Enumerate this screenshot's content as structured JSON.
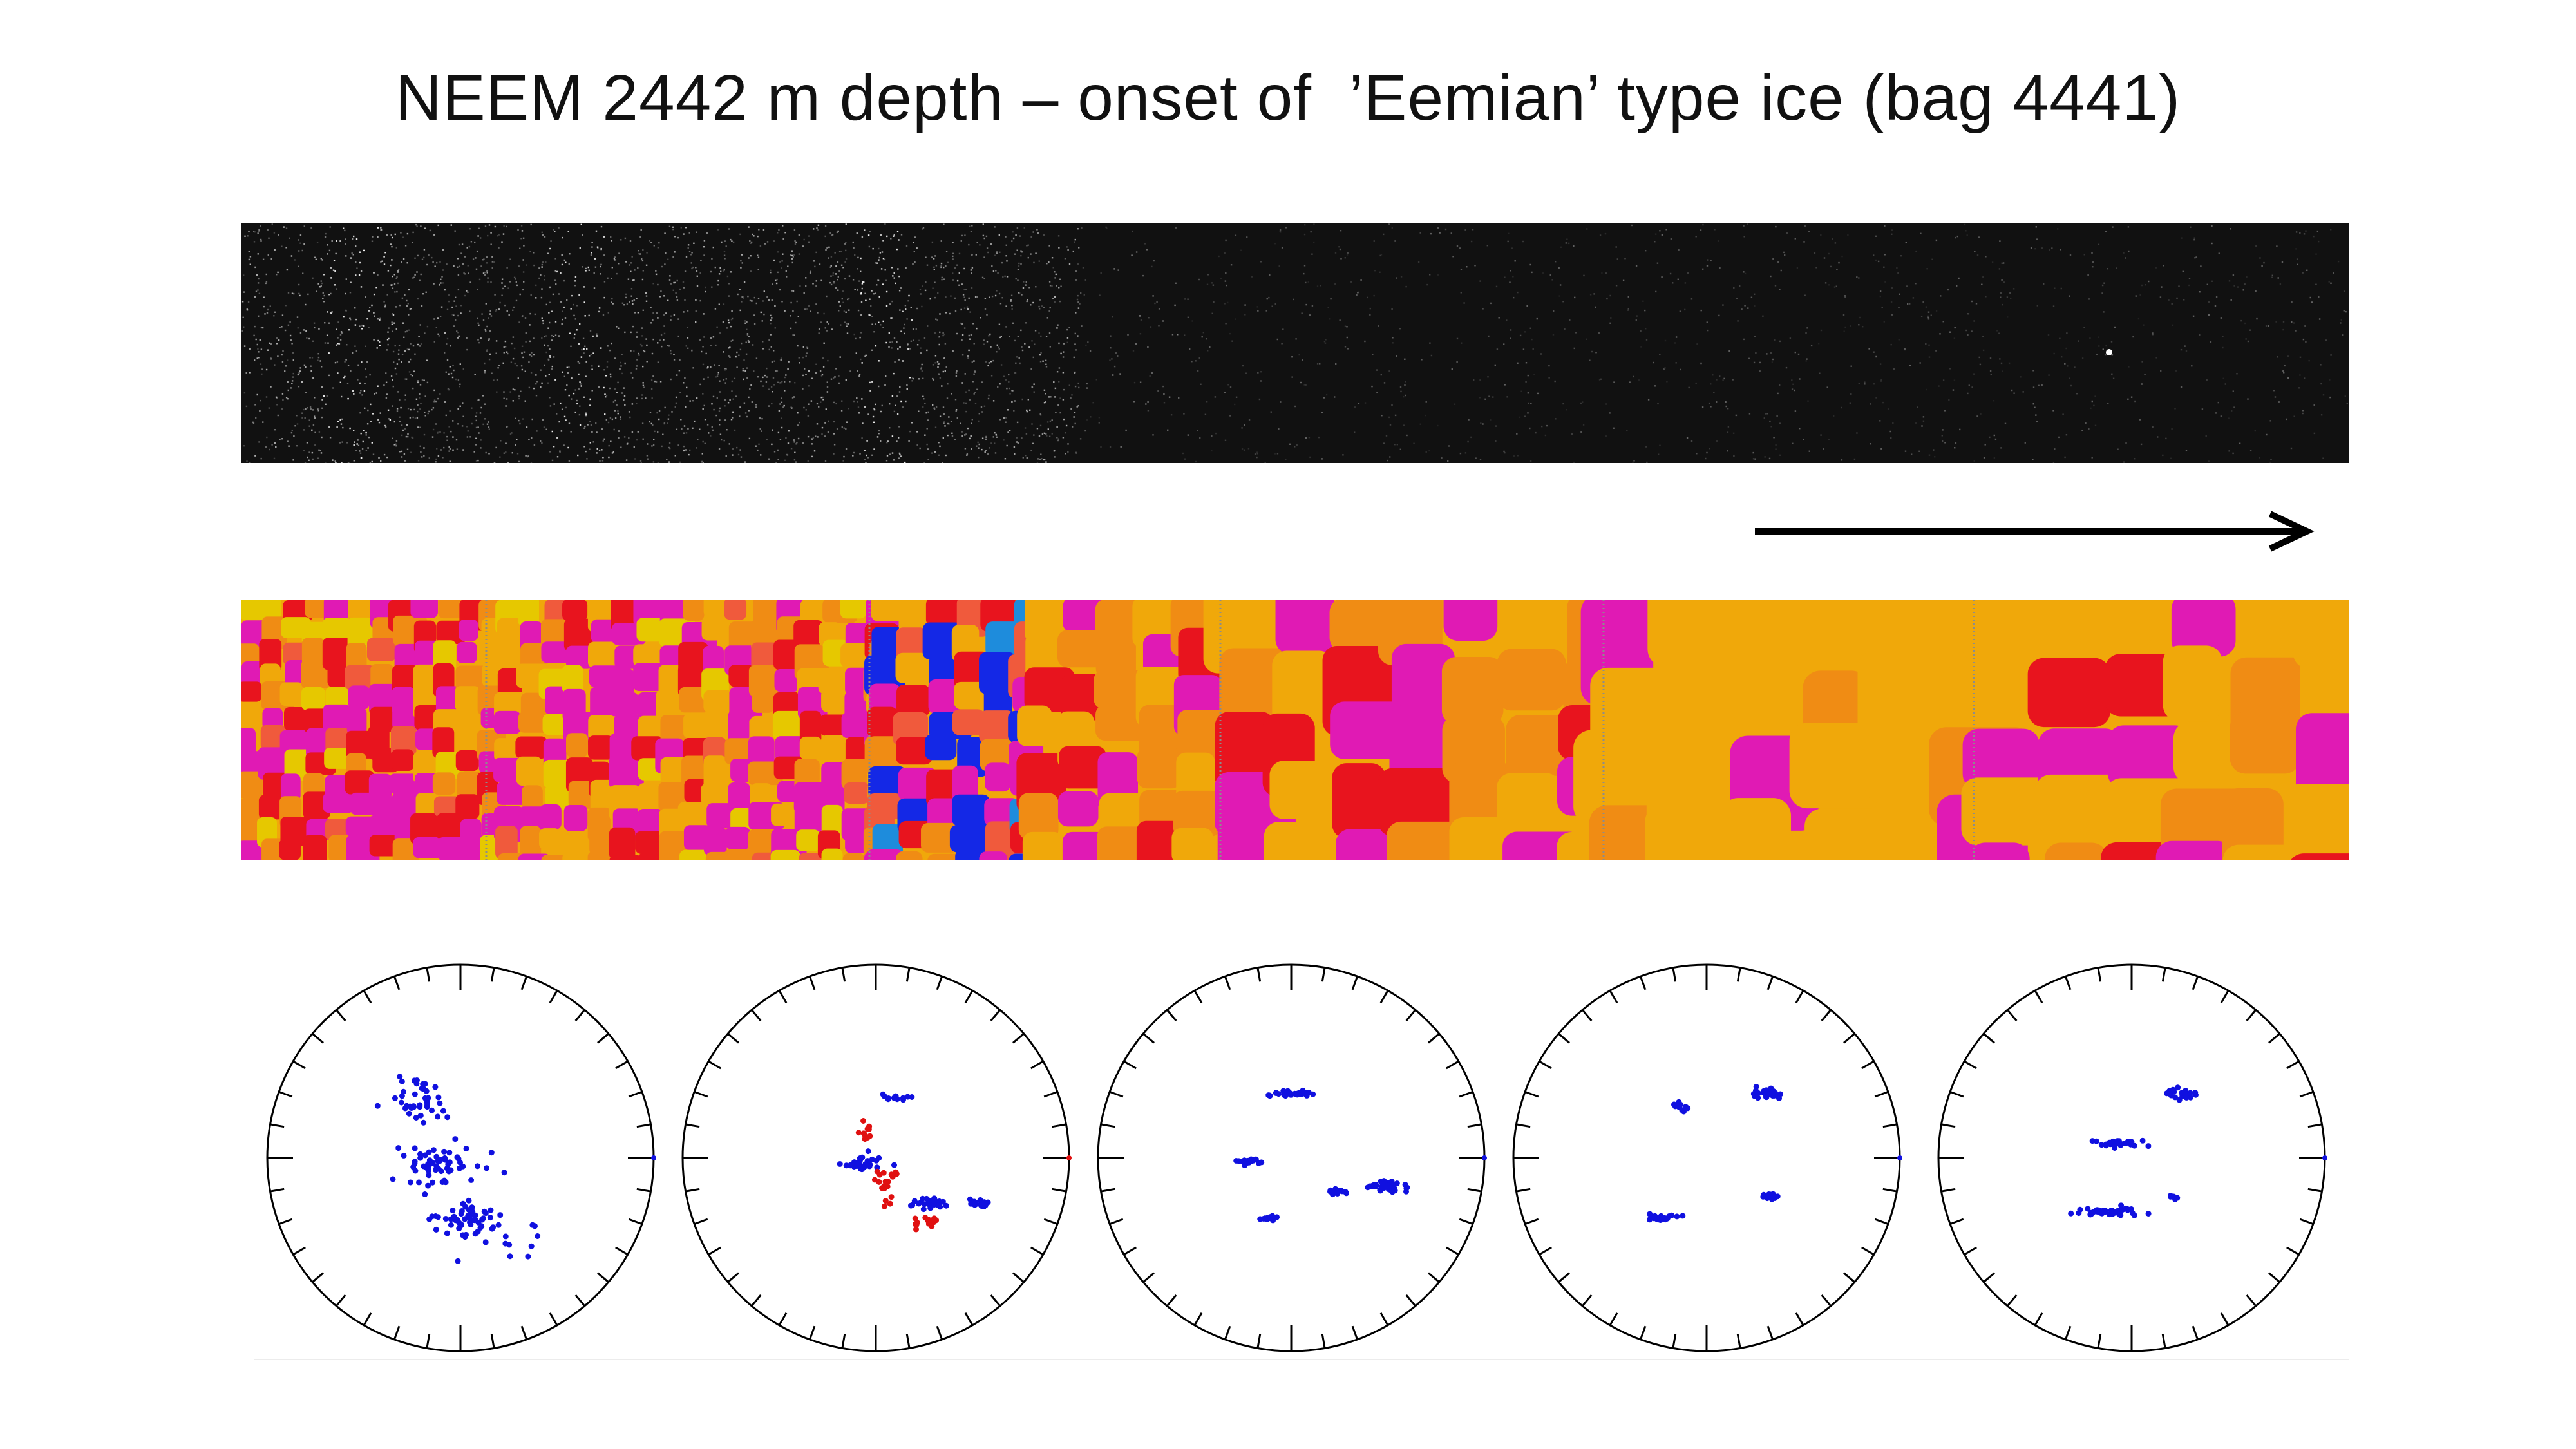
{
  "title": "NEEM 2442 m depth – onset of  ’Eemian’ type ice (bag 4441)",
  "colors": {
    "background": "#ffffff",
    "text": "#111111",
    "line_scan": "#111111",
    "c_axis_primary": "#1010e0",
    "c_axis_secondary": "#e01010",
    "orientation_palette": [
      "#e8141e",
      "#e01ab4",
      "#f08c14",
      "#f0a80a",
      "#e6c800",
      "#f05a3c",
      "#1428e6",
      "#1e8cdc",
      "#28dc32",
      "#cc00cc"
    ]
  },
  "panels": {
    "line_scan": "microstructure line-scan image",
    "arrow": "arrow-icon",
    "fabric_map": "c-axis orientation colour map"
  },
  "chart_data": [
    {
      "type": "scatter",
      "title": "",
      "kind": "stereonet",
      "series_colors": [
        "#1010e0"
      ],
      "clusters": "single broad girdle-like cluster, left-centre to lower-centre"
    },
    {
      "type": "scatter",
      "title": "",
      "kind": "stereonet",
      "series_colors": [
        "#1010e0",
        "#e01010"
      ],
      "clusters": "blue and red clusters, red group at upper-right rim and lower-left"
    },
    {
      "type": "scatter",
      "title": "",
      "kind": "stereonet",
      "series_colors": [
        "#1010e0"
      ],
      "clusters": "five tight blue clusters"
    },
    {
      "type": "scatter",
      "title": "",
      "kind": "stereonet",
      "series_colors": [
        "#1010e0"
      ],
      "clusters": "four tight blue clusters"
    },
    {
      "type": "scatter",
      "title": "",
      "kind": "stereonet",
      "series_colors": [
        "#1010e0"
      ],
      "clusters": "four tight blue clusters"
    }
  ]
}
